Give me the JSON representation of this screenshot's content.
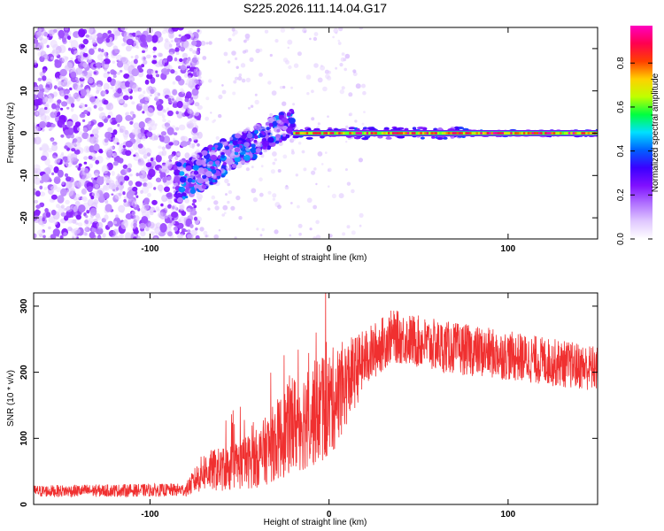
{
  "title": "S225.2026.111.14.04.G17",
  "chart_data": [
    {
      "type": "heatmap",
      "xlabel": "Height of straight line (km)",
      "ylabel": "Frequency (Hz)",
      "xlim": [
        -165,
        150
      ],
      "ylim": [
        -25,
        25
      ],
      "xticks": [
        -100,
        0,
        100
      ],
      "yticks": [
        -20,
        -10,
        0,
        10,
        20
      ],
      "colorbar": {
        "label": "Normalized spectral amplitude",
        "range": [
          0,
          0.97
        ],
        "ticks": [
          0.0,
          0.2,
          0.4,
          0.6,
          0.8
        ],
        "colormap": [
          "#ffffff",
          "#e0c8ff",
          "#b070ff",
          "#8010ff",
          "#3b00ff",
          "#0060ff",
          "#00e0ff",
          "#00ff40",
          "#c0ff00",
          "#ffd000",
          "#ff4000",
          "#ff0050",
          "#ff00c0"
        ]
      },
      "regions": [
        {
          "name": "noise",
          "x_range": [
            -165,
            -80
          ],
          "freq_range": [
            -25,
            25
          ],
          "amplitude_range": [
            0.05,
            0.25
          ]
        },
        {
          "name": "transition",
          "x_range": [
            -85,
            -20
          ],
          "freq_at_start": -12,
          "freq_at_end": 3,
          "amplitude_range": [
            0.2,
            0.45
          ]
        },
        {
          "name": "tone",
          "x_range": [
            -20,
            150
          ],
          "freq": 0,
          "amplitude_range": [
            0.6,
            0.97
          ]
        }
      ]
    },
    {
      "type": "line",
      "xlabel": "Height of straight line (km)",
      "ylabel": "SNR (10 * v/v)",
      "xlim": [
        -165,
        150
      ],
      "ylim": [
        0,
        320
      ],
      "xticks": [
        -100,
        0,
        100
      ],
      "yticks": [
        0,
        100,
        200,
        300
      ],
      "color": "#f03030",
      "trend": [
        {
          "x": -165,
          "y": 20,
          "spread": 18
        },
        {
          "x": -80,
          "y": 22,
          "spread": 20
        },
        {
          "x": -70,
          "y": 50,
          "spread": 60
        },
        {
          "x": -55,
          "y": 55,
          "spread": 70
        },
        {
          "x": -40,
          "y": 70,
          "spread": 90
        },
        {
          "x": -20,
          "y": 120,
          "spread": 150
        },
        {
          "x": 0,
          "y": 150,
          "spread": 170
        },
        {
          "x": 20,
          "y": 220,
          "spread": 90
        },
        {
          "x": 35,
          "y": 255,
          "spread": 80
        },
        {
          "x": 60,
          "y": 240,
          "spread": 80
        },
        {
          "x": 100,
          "y": 225,
          "spread": 75
        },
        {
          "x": 150,
          "y": 205,
          "spread": 70
        }
      ]
    }
  ]
}
